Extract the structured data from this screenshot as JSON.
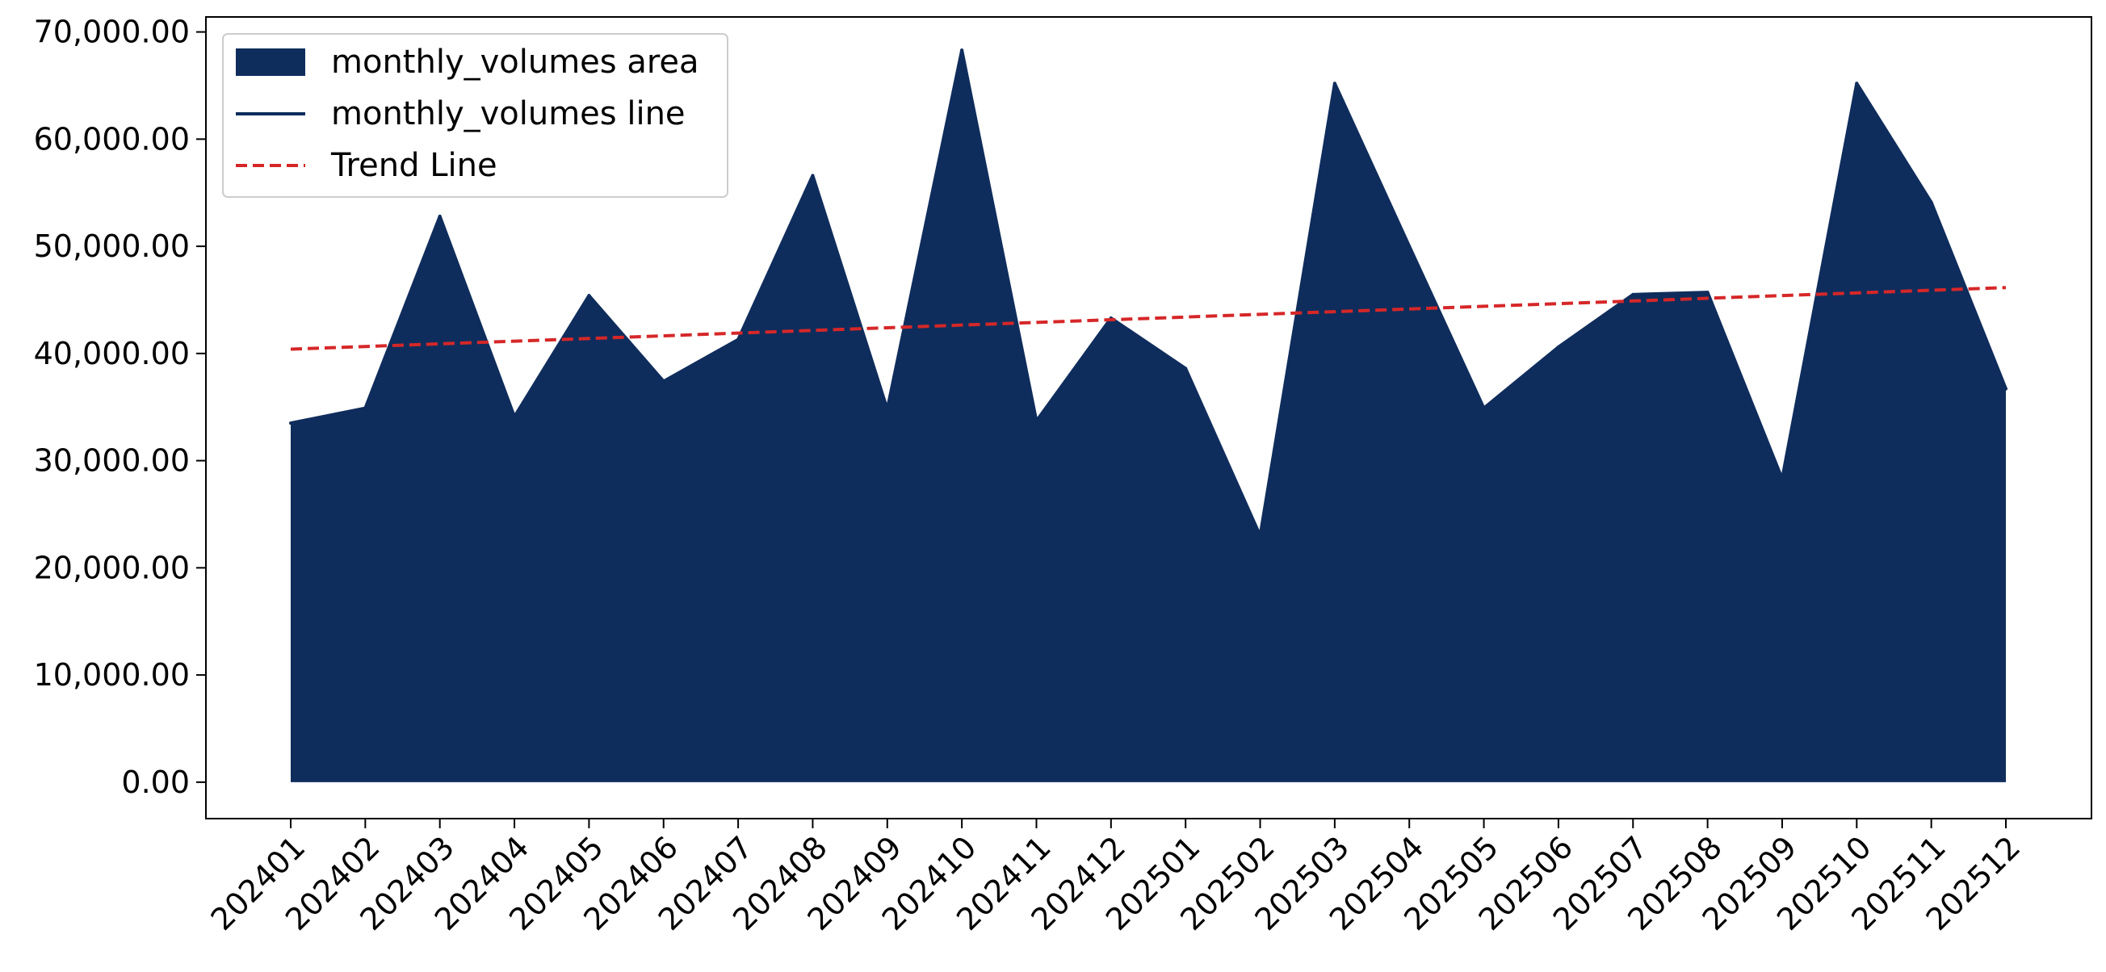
{
  "chart_data": {
    "type": "area",
    "title": "",
    "xlabel": "",
    "ylabel": "",
    "categories": [
      "202401",
      "202402",
      "202403",
      "202404",
      "202405",
      "202406",
      "202407",
      "202408",
      "202409",
      "202410",
      "202411",
      "202412",
      "202501",
      "202502",
      "202503",
      "202504",
      "202505",
      "202506",
      "202507",
      "202508",
      "202509",
      "202510",
      "202511",
      "202512"
    ],
    "series": [
      {
        "name": "monthly_volumes area",
        "kind": "area",
        "color": "#0f2d5c",
        "values": [
          33500,
          34900,
          52800,
          34100,
          45400,
          37400,
          41300,
          56600,
          34800,
          68300,
          33700,
          43300,
          38600,
          23000,
          65200,
          50000,
          34900,
          40600,
          45500,
          45700,
          28300,
          65200,
          54100,
          36700
        ]
      },
      {
        "name": "monthly_volumes line",
        "kind": "line",
        "color": "#0f2d5c",
        "values": [
          33500,
          34900,
          52800,
          34100,
          45400,
          37400,
          41300,
          56600,
          34800,
          68300,
          33700,
          43300,
          38600,
          23000,
          65200,
          50000,
          34900,
          40600,
          45500,
          45700,
          28300,
          65200,
          54100,
          36700
        ]
      },
      {
        "name": "Trend Line",
        "kind": "trend",
        "color": "#d62728",
        "values": [
          40400,
          40650,
          40900,
          41150,
          41400,
          41650,
          41900,
          42150,
          42400,
          42650,
          42900,
          43150,
          43400,
          43650,
          43900,
          44150,
          44400,
          44650,
          44900,
          45150,
          45400,
          45650,
          45900,
          46150
        ]
      }
    ],
    "yticks": [
      0,
      10000,
      20000,
      30000,
      40000,
      50000,
      60000,
      70000
    ],
    "ytick_labels": [
      "0.00",
      "10,000.00",
      "20,000.00",
      "30,000.00",
      "40,000.00",
      "50,000.00",
      "60,000.00",
      "70,000.00"
    ],
    "ylim": [
      -3400,
      71400
    ],
    "grid": false,
    "legend_position": "top-left"
  }
}
